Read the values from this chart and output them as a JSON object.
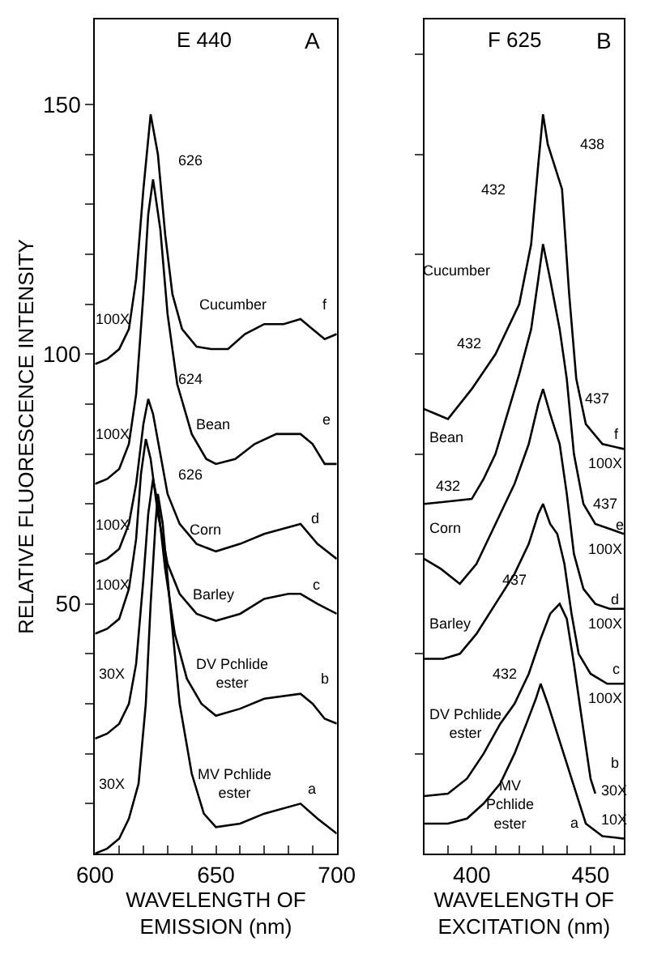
{
  "chart_data": [
    {
      "type": "line",
      "title": "E 440",
      "annotations": [
        "A",
        "626",
        "624",
        "626",
        "Cucumber",
        "Bean",
        "Corn",
        "Barley",
        "DV Pchlide\nester",
        "MV Pchlide\nester",
        "f",
        "e",
        "d",
        "c",
        "b",
        "a",
        "100X",
        "100X",
        "100X",
        "100X",
        "30X",
        "30X"
      ],
      "xlabel": "WAVELENGTH OF\nEMISSION (nm)",
      "ylabel": "RELATIVE FLUORESCENCE INTENSITY",
      "xlim": [
        600,
        700
      ],
      "ylim": [
        0,
        167
      ],
      "xticks": [
        600,
        {
          "value": 610,
          "label": null
        },
        {
          "value": 620,
          "label": null
        },
        {
          "value": 630,
          "label": null
        },
        {
          "value": 640,
          "label": null
        },
        650,
        {
          "value": 660,
          "label": null
        },
        {
          "value": 670,
          "label": null
        },
        {
          "value": 680,
          "label": null
        },
        {
          "value": 690,
          "label": null
        },
        700
      ],
      "yticks": [
        {
          "value": 10,
          "label": null
        },
        {
          "value": 20,
          "label": null
        },
        {
          "value": 30,
          "label": null
        },
        {
          "value": 40,
          "label": null
        },
        50,
        {
          "value": 60,
          "label": null
        },
        {
          "value": 70,
          "label": null
        },
        {
          "value": 80,
          "label": null
        },
        {
          "value": 90,
          "label": null
        },
        100,
        {
          "value": 110,
          "label": null
        },
        {
          "value": 120,
          "label": null
        },
        {
          "value": 130,
          "label": null
        },
        {
          "value": 140,
          "label": null
        },
        150
      ],
      "series": [
        {
          "color": "#000000",
          "x": [
            600,
            605,
            610,
            614,
            617,
            620,
            623,
            626,
            629,
            632,
            636,
            642,
            648,
            655,
            662,
            670,
            678,
            685,
            690,
            695,
            700
          ],
          "values": [
            98,
            99,
            101,
            105,
            115,
            133,
            148,
            140,
            124,
            112,
            105,
            101.5,
            101,
            101,
            104,
            106,
            106,
            107,
            105,
            103,
            104
          ]
        },
        {
          "color": "#000000",
          "x": [
            600,
            605,
            610,
            614,
            617,
            620,
            622,
            624,
            627,
            630,
            634,
            640,
            646,
            650,
            658,
            666,
            675,
            685,
            690,
            695,
            700
          ],
          "values": [
            74,
            75,
            77,
            82,
            92,
            112,
            128,
            135,
            125,
            108,
            94,
            84,
            79,
            78,
            79,
            82,
            84,
            84,
            82,
            78,
            78
          ]
        },
        {
          "color": "#000000",
          "x": [
            600,
            605,
            610,
            614,
            617,
            620,
            622,
            624,
            627,
            630,
            635,
            642,
            650,
            660,
            670,
            685,
            692,
            700
          ],
          "values": [
            58,
            59,
            61,
            66,
            74,
            86,
            91,
            88,
            80,
            72,
            66,
            62,
            60.5,
            62,
            64,
            66,
            62,
            59
          ]
        },
        {
          "color": "#000000",
          "x": [
            600,
            605,
            610,
            614,
            617,
            619,
            621,
            623,
            626,
            630,
            635,
            642,
            650,
            660,
            670,
            680,
            685,
            692,
            700
          ],
          "values": [
            44,
            45,
            47,
            53,
            63,
            76,
            83,
            79,
            68,
            58,
            52,
            48,
            46.6,
            48,
            51,
            52,
            52,
            50,
            48
          ]
        },
        {
          "color": "#000000",
          "x": [
            600,
            605,
            610,
            614,
            617,
            620,
            622,
            624,
            626,
            629,
            633,
            638,
            644,
            650,
            660,
            670,
            685,
            690,
            695,
            700
          ],
          "values": [
            23,
            24,
            26,
            30,
            38,
            55,
            68,
            75,
            70,
            57,
            44,
            35,
            30,
            27.6,
            29,
            31,
            32,
            30,
            27,
            26
          ]
        },
        {
          "color": "#000000",
          "x": [
            600,
            605,
            610,
            614,
            618,
            621,
            623,
            625,
            626,
            628,
            631,
            635,
            640,
            645,
            650,
            660,
            670,
            685,
            692,
            700
          ],
          "values": [
            0,
            1,
            3,
            7,
            14,
            30,
            50,
            66,
            72,
            66,
            50,
            30,
            16,
            8,
            5.3,
            6,
            8,
            10,
            7,
            4
          ]
        }
      ]
    },
    {
      "type": "line",
      "title": "F 625",
      "annotations": [
        "B",
        "438",
        "432",
        "Cucumber",
        "432",
        "437",
        "f",
        "100X",
        "Bean",
        "432",
        "437",
        "e",
        "100X",
        "Corn",
        "437",
        "d",
        "100X",
        "Barley",
        "432",
        "c",
        "100X",
        "DV Pchlide\nester",
        "b",
        "30X",
        "MV\nPchlide\nester",
        "a",
        "10X"
      ],
      "xlabel": "WAVELENGTH OF\nEXCITATION (nm)",
      "xlim": [
        380,
        464
      ],
      "ylim": [
        0,
        167
      ],
      "xticks": [
        {
          "value": 390,
          "label": null
        },
        400,
        {
          "value": 410,
          "label": null
        },
        {
          "value": 420,
          "label": null
        },
        {
          "value": 430,
          "label": null
        },
        {
          "value": 440,
          "label": null
        },
        450,
        {
          "value": 460,
          "label": null
        }
      ],
      "yticks": [
        {
          "value": 20,
          "label": null
        },
        {
          "value": 40,
          "label": null
        },
        {
          "value": 60,
          "label": null
        },
        {
          "value": 80,
          "label": null
        },
        {
          "value": 100,
          "label": null
        },
        {
          "value": 120,
          "label": null
        },
        {
          "value": 140,
          "label": null
        },
        {
          "value": 160,
          "label": null
        }
      ],
      "tick_labels": "x",
      "series": [
        {
          "color": "#000000",
          "x": [
            380,
            385,
            390,
            400,
            410,
            420,
            425,
            428,
            430,
            432,
            436,
            438,
            441,
            444,
            448,
            455,
            464
          ],
          "values": [
            89,
            88,
            87,
            93,
            100,
            110,
            122,
            138,
            148,
            142,
            136,
            133,
            112,
            95,
            86,
            82,
            81
          ]
        },
        {
          "color": "#000000",
          "x": [
            380,
            390,
            400,
            405,
            410,
            415,
            420,
            425,
            428,
            430,
            433,
            437,
            440,
            443,
            447,
            452,
            458,
            464
          ],
          "values": [
            70,
            70.5,
            71,
            75,
            80,
            88,
            96,
            105,
            115,
            122,
            115,
            105,
            95,
            80,
            70,
            66,
            65,
            64
          ]
        },
        {
          "color": "#000000",
          "x": [
            380,
            387,
            395,
            402,
            410,
            418,
            424,
            428,
            430,
            433,
            437,
            440,
            443,
            447,
            452,
            458,
            464
          ],
          "values": [
            59,
            57,
            54,
            58,
            66,
            74,
            82,
            90,
            93,
            88,
            82,
            72,
            60,
            53,
            50,
            49,
            49
          ]
        },
        {
          "color": "#000000",
          "x": [
            380,
            388,
            395,
            402,
            410,
            418,
            424,
            428,
            430,
            433,
            436,
            439,
            442,
            445,
            450,
            457,
            464
          ],
          "values": [
            39,
            39,
            40,
            44,
            50,
            56,
            62,
            68,
            70,
            66,
            64,
            58,
            48,
            40,
            36,
            34,
            34
          ]
        },
        {
          "color": "#000000",
          "x": [
            380,
            390,
            398,
            405,
            412,
            418,
            424,
            429,
            433,
            437,
            440,
            443,
            446,
            450,
            452
          ],
          "values": [
            11.5,
            12,
            15,
            20,
            26,
            30,
            36,
            43,
            48,
            50,
            47,
            38,
            28,
            15,
            12
          ]
        },
        {
          "color": "#000000",
          "x": [
            380,
            390,
            398,
            405,
            412,
            418,
            423,
            427,
            429,
            432,
            436,
            440,
            444,
            448,
            455,
            464
          ],
          "values": [
            6,
            6,
            7,
            10,
            14,
            20,
            26,
            31,
            34,
            30,
            24,
            18,
            12,
            6,
            3.5,
            3
          ]
        }
      ]
    }
  ]
}
